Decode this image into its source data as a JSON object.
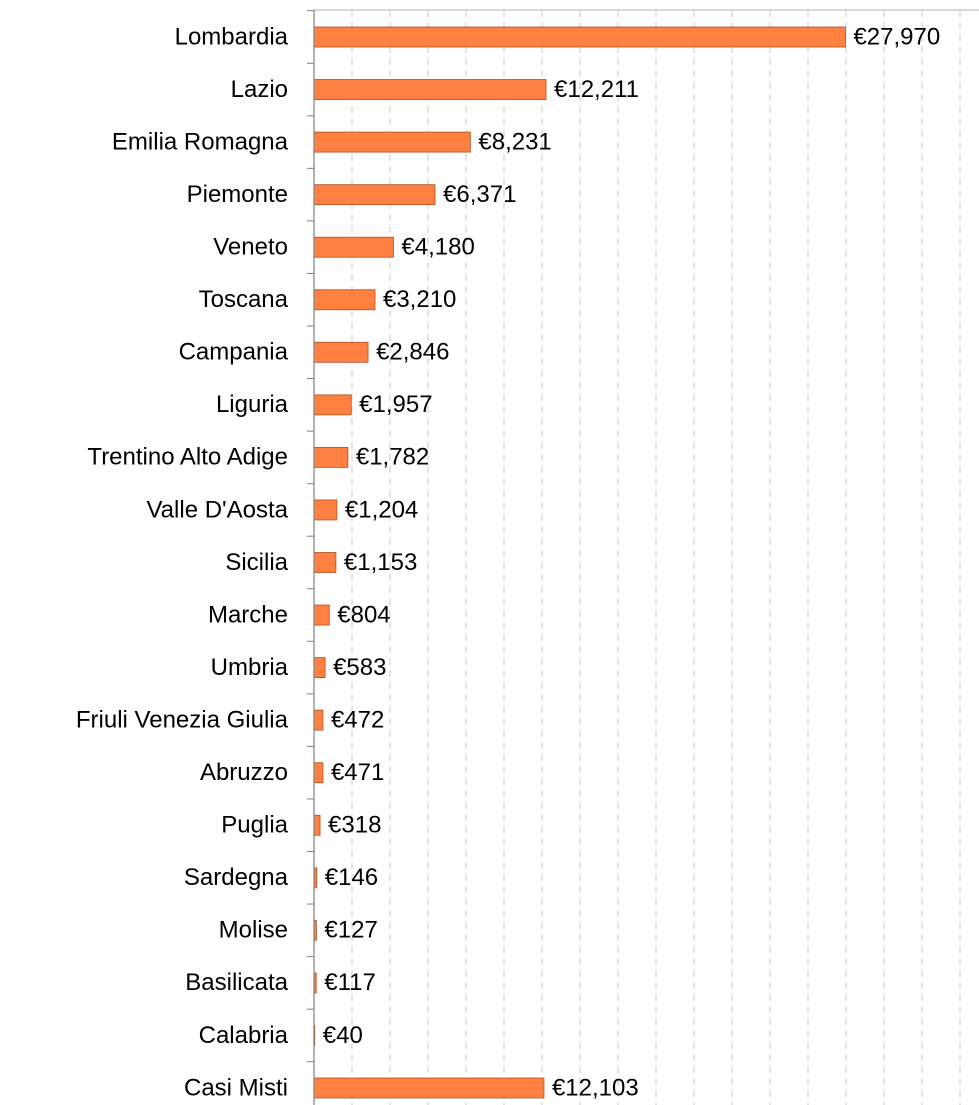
{
  "chart_data": {
    "type": "barh",
    "categories": [
      "Lombardia",
      "Lazio",
      "Emilia Romagna",
      "Piemonte",
      "Veneto",
      "Toscana",
      "Campania",
      "Liguria",
      "Trentino Alto Adige",
      "Valle D'Aosta",
      "Sicilia",
      "Marche",
      "Umbria",
      "Friuli Venezia Giulia",
      "Abruzzo",
      "Puglia",
      "Sardegna",
      "Molise",
      "Basilicata",
      "Calabria",
      "Casi Misti"
    ],
    "values": [
      27970,
      12211,
      8231,
      6371,
      4180,
      3210,
      2846,
      1957,
      1782,
      1204,
      1153,
      804,
      583,
      472,
      471,
      318,
      146,
      127,
      117,
      40,
      12103
    ],
    "value_labels": [
      "€27,970",
      "€12,211",
      "€8,231",
      "€6,371",
      "€4,180",
      "€3,210",
      "€2,846",
      "€1,957",
      "€1,782",
      "€1,204",
      "€1,153",
      "€804",
      "€583",
      "€472",
      "€471",
      "€318",
      "€146",
      "€127",
      "€117",
      "€40",
      "€12,103"
    ],
    "color": "#ff8040",
    "xlim": [
      0,
      35000
    ],
    "xticks": [
      0,
      2000,
      4000,
      6000,
      8000,
      10000,
      12000,
      14000,
      16000,
      18000,
      20000,
      22000,
      24000,
      26000,
      28000,
      30000,
      32000,
      34000
    ],
    "grid": true
  }
}
